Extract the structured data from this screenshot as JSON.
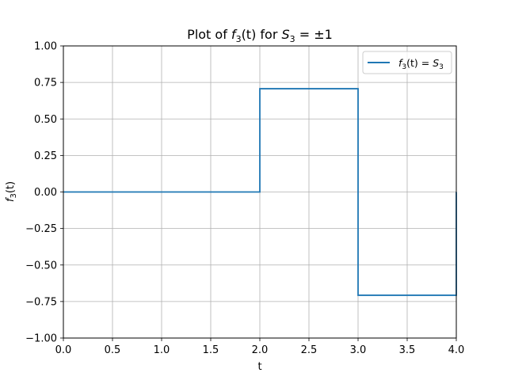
{
  "chart_data": {
    "type": "line",
    "title_parts": {
      "prefix": "Plot of ",
      "func": "f",
      "func_sub": "3",
      "func_arg": "(t)",
      "middle": " for ",
      "sym": "S",
      "sym_sub": "3",
      "suffix": " = ±1"
    },
    "xlabel": "t",
    "ylabel_parts": {
      "func": "f",
      "func_sub": "3",
      "func_arg": "(t)"
    },
    "xlim": [
      0.0,
      4.0
    ],
    "ylim": [
      -1.0,
      1.0
    ],
    "xticks": [
      0.0,
      0.5,
      1.0,
      1.5,
      2.0,
      2.5,
      3.0,
      3.5,
      4.0
    ],
    "xtick_labels": [
      "0.0",
      "0.5",
      "1.0",
      "1.5",
      "2.0",
      "2.5",
      "3.0",
      "3.5",
      "4.0"
    ],
    "yticks": [
      -1.0,
      -0.75,
      -0.5,
      -0.25,
      0.0,
      0.25,
      0.5,
      0.75,
      1.0
    ],
    "ytick_labels": [
      "−1.00",
      "−0.75",
      "−0.50",
      "−0.25",
      "0.00",
      "0.25",
      "0.50",
      "0.75",
      "1.00"
    ],
    "grid": true,
    "legend_position": "top-right",
    "series": [
      {
        "name_parts": {
          "func": "f",
          "func_sub": "3",
          "func_arg": "(t)",
          "eq": " = ",
          "sym": "S",
          "sym_sub": "3"
        },
        "color": "#1f77b4",
        "x": [
          0.0,
          2.0,
          2.0,
          3.0,
          3.0,
          4.0,
          4.0
        ],
        "y": [
          0.0,
          0.0,
          0.7071,
          0.7071,
          -0.7071,
          -0.7071,
          0.0
        ]
      }
    ]
  }
}
